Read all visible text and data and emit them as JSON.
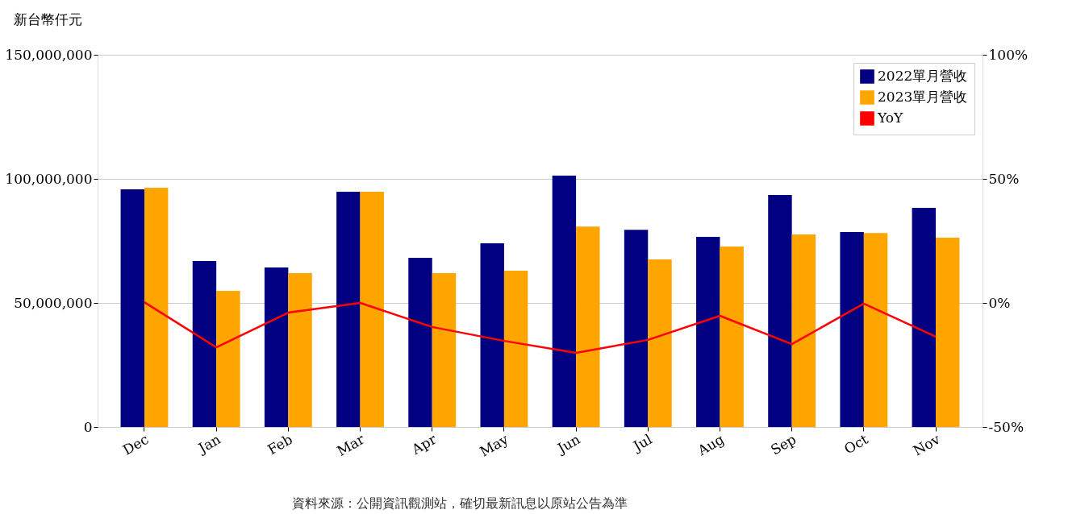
{
  "chart_data": {
    "type": "bar",
    "ylabel": "新台幣仟元",
    "categories": [
      "Dec",
      "Jan",
      "Feb",
      "Mar",
      "Apr",
      "May",
      "Jun",
      "Jul",
      "Aug",
      "Sep",
      "Oct",
      "Nov"
    ],
    "series": [
      {
        "name": "2022單月營收",
        "color": "#000080",
        "values": [
          95800000,
          66900000,
          64300000,
          94800000,
          68200000,
          74000000,
          101300000,
          79500000,
          76600000,
          93500000,
          78600000,
          88300000
        ]
      },
      {
        "name": "2023單月營收",
        "color": "#ffa500",
        "values": [
          96400000,
          54900000,
          62000000,
          94800000,
          62000000,
          63000000,
          80800000,
          67500000,
          72700000,
          77600000,
          78200000,
          76300000
        ]
      },
      {
        "name": "YoY",
        "type": "line",
        "axis": "y2",
        "color": "#ff0000",
        "values": [
          0.3,
          -17.9,
          -3.9,
          0,
          -9.7,
          -15.3,
          -20.1,
          -14.9,
          -5.2,
          -16.6,
          -0.3,
          -13.6
        ]
      }
    ],
    "ylim": [
      0,
      150000000
    ],
    "yticks": [
      {
        "value": 0,
        "label": "0"
      },
      {
        "value": 50000000,
        "label": "50,000,000"
      },
      {
        "value": 100000000,
        "label": "100,000,000"
      },
      {
        "value": 150000000,
        "label": "150,000,000"
      }
    ],
    "y2lim": [
      -50,
      100
    ],
    "y2ticks": [
      {
        "value": -50,
        "label": "-50%"
      },
      {
        "value": 0,
        "label": "0%"
      },
      {
        "value": 50,
        "label": "50%"
      },
      {
        "value": 100,
        "label": "100%"
      }
    ],
    "grid": "y",
    "legend": "top right",
    "annotations": [
      "資料來源：公開資訊觀測站，確切最新訊息以原站公告為準"
    ]
  }
}
